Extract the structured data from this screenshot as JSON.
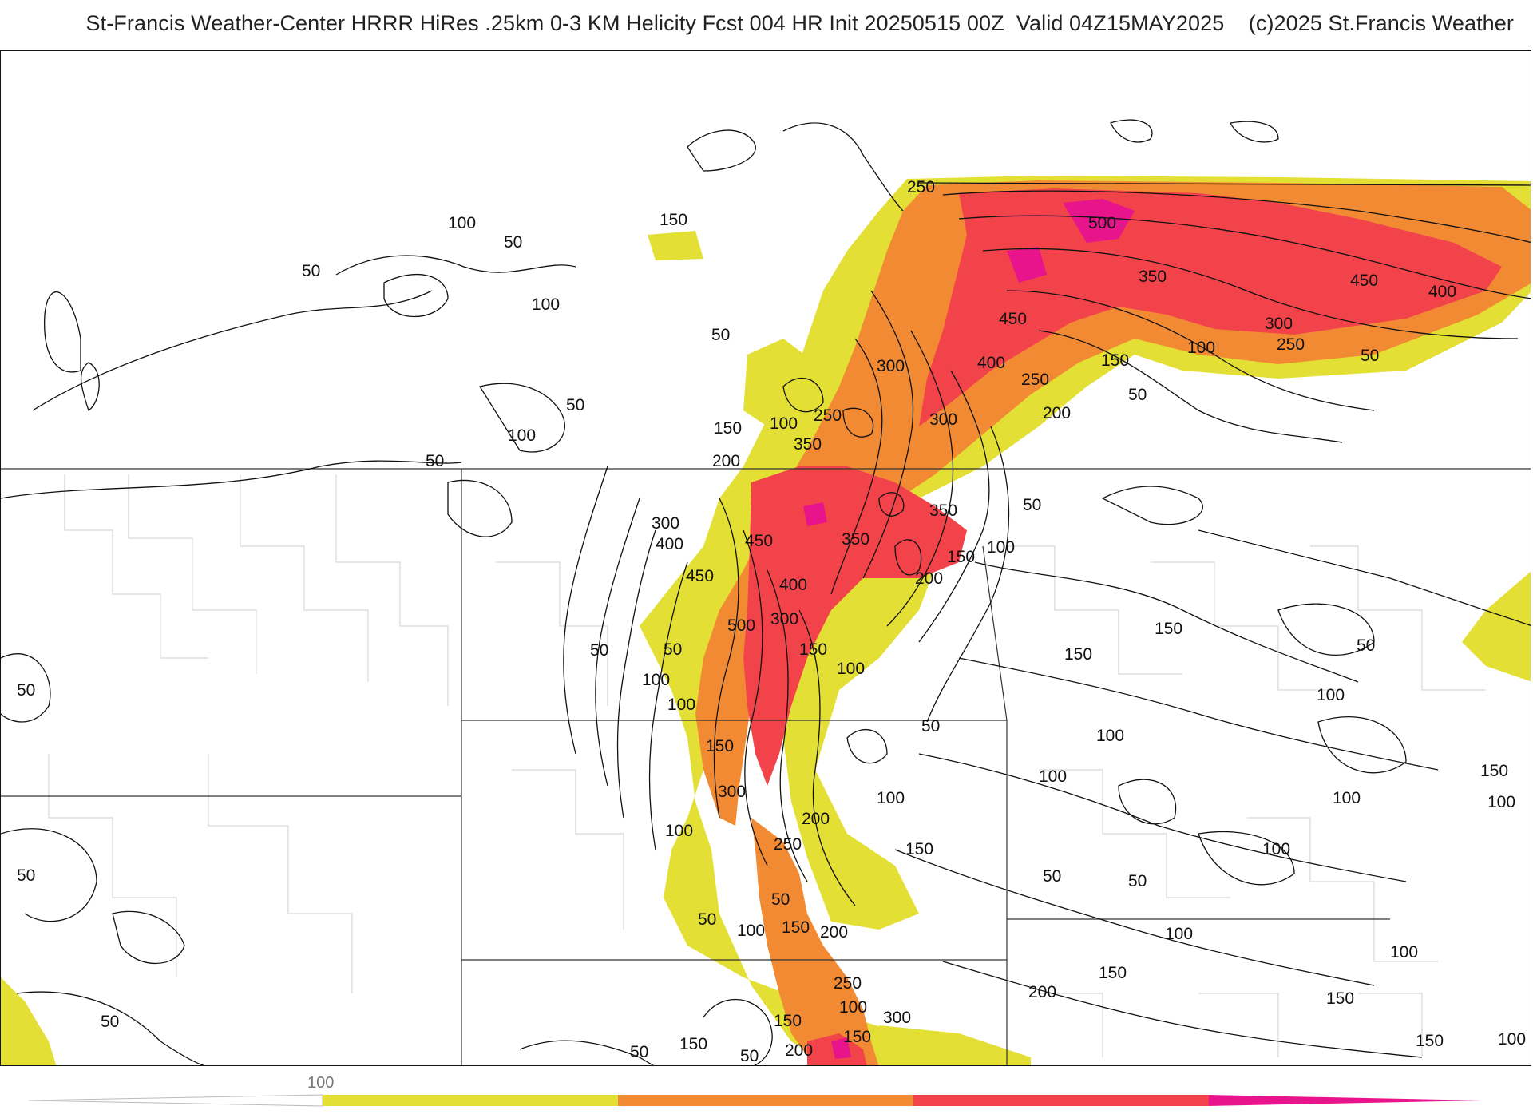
{
  "header": {
    "title": "St-Francis Weather-Center HRRR HiRes .25km 0-3 KM Helicity Fcst 004 HR Init 20250515 00Z  Valid 04Z15MAY2025    (c)2025 St.Francis Weather"
  },
  "colors": {
    "yellow": "#e3df34",
    "orange": "#f28a34",
    "red": "#f2434a",
    "magenta": "#e8148c",
    "contour": "#111111",
    "state_border": "#333333",
    "county_border": "#cfcfcf"
  },
  "colorbar": {
    "tick_label": "100",
    "bins": [
      "#e3df34",
      "#f28a34",
      "#f2434a",
      "#e8148c"
    ]
  },
  "contour_labels": {
    "v50": "50",
    "v100": "100",
    "v150": "150",
    "v200": "200",
    "v250": "250",
    "v300": "300",
    "v350": "350",
    "v400": "400",
    "v450": "450",
    "v500": "500"
  }
}
